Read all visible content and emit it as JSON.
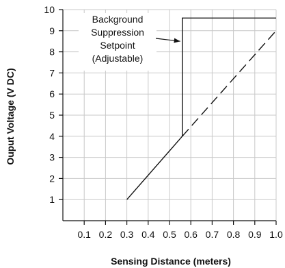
{
  "chart_data": {
    "type": "line",
    "title": "",
    "xlabel": "Sensing Distance (meters)",
    "ylabel": "Ouput Voltage (V DC)",
    "xlim": [
      0,
      1.0
    ],
    "ylim": [
      0,
      10
    ],
    "x_ticks": [
      "0.1",
      "0.2",
      "0.3",
      "0.4",
      "0.5",
      "0.6",
      "0.7",
      "0.8",
      "0.9",
      "1.0"
    ],
    "y_ticks": [
      "1",
      "2",
      "3",
      "4",
      "5",
      "6",
      "7",
      "8",
      "9",
      "10"
    ],
    "grid": true,
    "series": [
      {
        "style": "solid",
        "points": [
          [
            0.3,
            1.0
          ],
          [
            0.56,
            4.0
          ]
        ]
      },
      {
        "style": "dashed",
        "points": [
          [
            0.56,
            4.0
          ],
          [
            1.0,
            9.0
          ]
        ]
      },
      {
        "style": "solid",
        "points": [
          [
            0.56,
            4.0
          ],
          [
            0.56,
            9.6
          ],
          [
            1.0,
            9.6
          ]
        ]
      }
    ],
    "annotations": [
      {
        "lines": [
          "Background",
          "Suppression",
          "Setpoint",
          "(Adjustable)"
        ],
        "arrow_to": [
          0.56,
          8.5
        ]
      }
    ]
  }
}
